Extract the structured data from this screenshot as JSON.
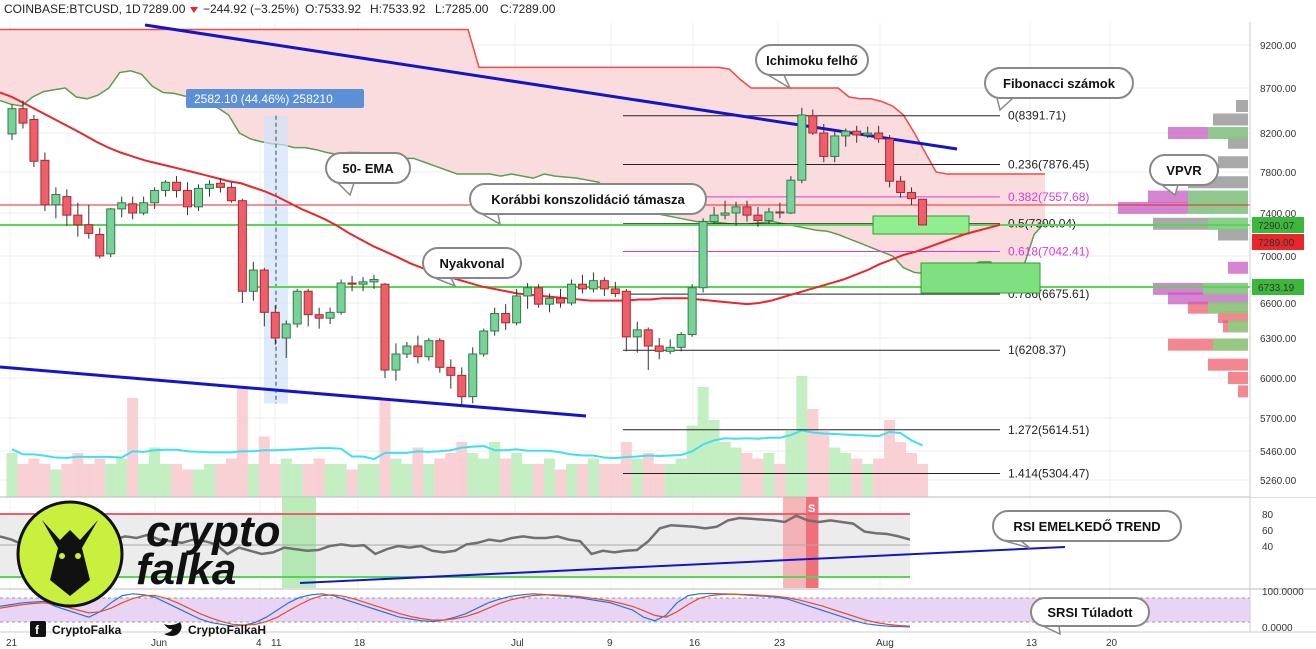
{
  "header": {
    "symbol": "COINBASE:BTCUSD, 1D",
    "last": "7289.00",
    "change": "−244.92 (−3.25%)",
    "o": "O:7533.92",
    "h": "H:7533.92",
    "l": "L:7285.00",
    "c": "C:7289.00"
  },
  "colors": {
    "up": "#79d19a",
    "up_border": "#2e7d47",
    "down": "#ef5f6a",
    "down_border": "#a52a33",
    "ema": "#e8262c",
    "cloud_fill": "#fbd8da",
    "cloud_top": "#ee4b4b",
    "cloud_bottom": "#5c9c4c",
    "trend": "#1515c8",
    "support": "#55d655",
    "rsi_line": "#707070",
    "srsi_k": "#2a73d6",
    "srsi_d": "#e34d2a",
    "callout_border": "#888888"
  },
  "chart_data": {
    "type": "candlestick",
    "title": "COINBASE:BTCUSD, 1D",
    "price_axis": [
      9200,
      8700,
      8200,
      7800,
      7400,
      7000,
      6600,
      6300,
      6000,
      5700,
      5460,
      5260
    ],
    "price_axis_labels": [
      "9200.00",
      "8700.00",
      "8200.00",
      "7800.00",
      "7400.00",
      "7000.00",
      "6600.00",
      "6300.00",
      "6000.00",
      "5700.00",
      "5460.00",
      "5260.00"
    ],
    "time_axis": [
      "21",
      "Jun",
      "4",
      "11",
      "18",
      "Jul",
      "9",
      "16",
      "23",
      "Aug",
      "13",
      "20"
    ],
    "price_labels": [
      {
        "value": "7290.07",
        "color": "#3bb83b"
      },
      {
        "value": "7289.00",
        "color": "#e8262c"
      },
      {
        "value": "6733.19",
        "color": "#3bb83b"
      }
    ],
    "candles": [
      {
        "o": 8190,
        "h": 8520,
        "l": 8130,
        "c": 8470
      },
      {
        "o": 8470,
        "h": 8560,
        "l": 8250,
        "c": 8310
      },
      {
        "o": 8350,
        "h": 8400,
        "l": 7850,
        "c": 7910
      },
      {
        "o": 7920,
        "h": 8000,
        "l": 7420,
        "c": 7480
      },
      {
        "o": 7480,
        "h": 7650,
        "l": 7350,
        "c": 7580
      },
      {
        "o": 7560,
        "h": 7630,
        "l": 7280,
        "c": 7380
      },
      {
        "o": 7380,
        "h": 7500,
        "l": 7180,
        "c": 7290
      },
      {
        "o": 7290,
        "h": 7480,
        "l": 7160,
        "c": 7210
      },
      {
        "o": 7200,
        "h": 7260,
        "l": 6980,
        "c": 7000
      },
      {
        "o": 7020,
        "h": 7450,
        "l": 6990,
        "c": 7440
      },
      {
        "o": 7440,
        "h": 7560,
        "l": 7360,
        "c": 7500
      },
      {
        "o": 7490,
        "h": 7560,
        "l": 7340,
        "c": 7400
      },
      {
        "o": 7400,
        "h": 7560,
        "l": 7380,
        "c": 7500
      },
      {
        "o": 7500,
        "h": 7650,
        "l": 7440,
        "c": 7620
      },
      {
        "o": 7620,
        "h": 7720,
        "l": 7560,
        "c": 7700
      },
      {
        "o": 7700,
        "h": 7760,
        "l": 7550,
        "c": 7620
      },
      {
        "o": 7620,
        "h": 7700,
        "l": 7380,
        "c": 7460
      },
      {
        "o": 7460,
        "h": 7680,
        "l": 7420,
        "c": 7640
      },
      {
        "o": 7640,
        "h": 7720,
        "l": 7560,
        "c": 7680
      },
      {
        "o": 7690,
        "h": 7740,
        "l": 7600,
        "c": 7650
      },
      {
        "o": 7650,
        "h": 7700,
        "l": 7500,
        "c": 7520
      },
      {
        "o": 7520,
        "h": 7540,
        "l": 6600,
        "c": 6700
      },
      {
        "o": 6700,
        "h": 6950,
        "l": 6620,
        "c": 6880
      },
      {
        "o": 6880,
        "h": 6900,
        "l": 6400,
        "c": 6520
      },
      {
        "o": 6520,
        "h": 6580,
        "l": 6250,
        "c": 6300
      },
      {
        "o": 6300,
        "h": 6450,
        "l": 6150,
        "c": 6420
      },
      {
        "o": 6420,
        "h": 6720,
        "l": 6390,
        "c": 6700
      },
      {
        "o": 6700,
        "h": 6720,
        "l": 6400,
        "c": 6500
      },
      {
        "o": 6500,
        "h": 6560,
        "l": 6380,
        "c": 6470
      },
      {
        "o": 6470,
        "h": 6560,
        "l": 6420,
        "c": 6520
      },
      {
        "o": 6520,
        "h": 6800,
        "l": 6500,
        "c": 6770
      },
      {
        "o": 6770,
        "h": 6830,
        "l": 6700,
        "c": 6760
      },
      {
        "o": 6760,
        "h": 6820,
        "l": 6700,
        "c": 6780
      },
      {
        "o": 6780,
        "h": 6840,
        "l": 6720,
        "c": 6800
      },
      {
        "o": 6760,
        "h": 6770,
        "l": 6000,
        "c": 6060
      },
      {
        "o": 6060,
        "h": 6260,
        "l": 5980,
        "c": 6180
      },
      {
        "o": 6180,
        "h": 6270,
        "l": 6150,
        "c": 6240
      },
      {
        "o": 6240,
        "h": 6320,
        "l": 6110,
        "c": 6160
      },
      {
        "o": 6160,
        "h": 6300,
        "l": 6130,
        "c": 6280
      },
      {
        "o": 6280,
        "h": 6300,
        "l": 6040,
        "c": 6080
      },
      {
        "o": 6080,
        "h": 6140,
        "l": 5920,
        "c": 6020
      },
      {
        "o": 6020,
        "h": 6080,
        "l": 5780,
        "c": 5860
      },
      {
        "o": 5860,
        "h": 6230,
        "l": 5810,
        "c": 6180
      },
      {
        "o": 6180,
        "h": 6380,
        "l": 6160,
        "c": 6360
      },
      {
        "o": 6360,
        "h": 6560,
        "l": 6320,
        "c": 6510
      },
      {
        "o": 6510,
        "h": 6590,
        "l": 6370,
        "c": 6430
      },
      {
        "o": 6430,
        "h": 6720,
        "l": 6410,
        "c": 6660
      },
      {
        "o": 6660,
        "h": 6770,
        "l": 6550,
        "c": 6730
      },
      {
        "o": 6730,
        "h": 6760,
        "l": 6560,
        "c": 6590
      },
      {
        "o": 6590,
        "h": 6680,
        "l": 6520,
        "c": 6640
      },
      {
        "o": 6640,
        "h": 6720,
        "l": 6560,
        "c": 6600
      },
      {
        "o": 6600,
        "h": 6800,
        "l": 6580,
        "c": 6760
      },
      {
        "o": 6760,
        "h": 6840,
        "l": 6680,
        "c": 6720
      },
      {
        "o": 6720,
        "h": 6860,
        "l": 6690,
        "c": 6790
      },
      {
        "o": 6790,
        "h": 6820,
        "l": 6660,
        "c": 6720
      },
      {
        "o": 6720,
        "h": 6780,
        "l": 6650,
        "c": 6680
      },
      {
        "o": 6700,
        "h": 6720,
        "l": 6200,
        "c": 6310
      },
      {
        "o": 6310,
        "h": 6440,
        "l": 6190,
        "c": 6370
      },
      {
        "o": 6370,
        "h": 6390,
        "l": 6060,
        "c": 6240
      },
      {
        "o": 6240,
        "h": 6300,
        "l": 6140,
        "c": 6200
      },
      {
        "o": 6200,
        "h": 6290,
        "l": 6180,
        "c": 6230
      },
      {
        "o": 6230,
        "h": 6350,
        "l": 6200,
        "c": 6330
      },
      {
        "o": 6330,
        "h": 6760,
        "l": 6310,
        "c": 6730
      },
      {
        "o": 6730,
        "h": 7350,
        "l": 6690,
        "c": 7320
      },
      {
        "o": 7320,
        "h": 7460,
        "l": 7300,
        "c": 7380
      },
      {
        "o": 7380,
        "h": 7520,
        "l": 7340,
        "c": 7400
      },
      {
        "o": 7400,
        "h": 7510,
        "l": 7280,
        "c": 7460
      },
      {
        "o": 7460,
        "h": 7520,
        "l": 7320,
        "c": 7380
      },
      {
        "o": 7380,
        "h": 7460,
        "l": 7270,
        "c": 7330
      },
      {
        "o": 7330,
        "h": 7450,
        "l": 7300,
        "c": 7410
      },
      {
        "o": 7410,
        "h": 7500,
        "l": 7350,
        "c": 7400
      },
      {
        "o": 7400,
        "h": 7760,
        "l": 7390,
        "c": 7720
      },
      {
        "o": 7720,
        "h": 8480,
        "l": 7690,
        "c": 8400
      },
      {
        "o": 8390,
        "h": 8460,
        "l": 8180,
        "c": 8200
      },
      {
        "o": 8200,
        "h": 8300,
        "l": 7900,
        "c": 7960
      },
      {
        "o": 7960,
        "h": 8220,
        "l": 7900,
        "c": 8170
      },
      {
        "o": 8170,
        "h": 8250,
        "l": 8060,
        "c": 8220
      },
      {
        "o": 8220,
        "h": 8280,
        "l": 8100,
        "c": 8180
      },
      {
        "o": 8180,
        "h": 8270,
        "l": 8150,
        "c": 8200
      },
      {
        "o": 8200,
        "h": 8280,
        "l": 8100,
        "c": 8140
      },
      {
        "o": 8140,
        "h": 8180,
        "l": 7650,
        "c": 7710
      },
      {
        "o": 7710,
        "h": 7760,
        "l": 7550,
        "c": 7600
      },
      {
        "o": 7600,
        "h": 7650,
        "l": 7480,
        "c": 7540
      },
      {
        "o": 7534,
        "h": 7534,
        "l": 7285,
        "c": 7289
      }
    ],
    "ema50": [
      8650,
      8600,
      8530,
      8460,
      8390,
      8320,
      8250,
      8180,
      8110,
      8050,
      8000,
      7960,
      7920,
      7890,
      7860,
      7830,
      7800,
      7770,
      7740,
      7710,
      7690,
      7650,
      7610,
      7560,
      7500,
      7440,
      7390,
      7340,
      7280,
      7210,
      7150,
      7090,
      7040,
      6990,
      6940,
      6900,
      6860,
      6830,
      6800,
      6770,
      6740,
      6720,
      6700,
      6680,
      6670,
      6660,
      6650,
      6640,
      6630,
      6620,
      6620,
      6620,
      6620,
      6630,
      6630,
      6640,
      6640,
      6640,
      6630,
      6620,
      6610,
      6600,
      6590,
      6600,
      6620,
      6650,
      6680,
      6710,
      6740,
      6770,
      6800,
      6840,
      6880,
      6930,
      6970,
      7010,
      7040,
      7080,
      7120,
      7160,
      7200,
      7230,
      7260,
      7290
    ],
    "cloud": {
      "span_top": [
        9380,
        9380,
        9380,
        9380,
        9380,
        9380,
        9380,
        9380,
        9380,
        9380,
        9380,
        9380,
        9380,
        9380,
        9380,
        9380,
        9380,
        9380,
        9380,
        9380,
        9380,
        9380,
        9380,
        9380,
        9380,
        9380,
        9380,
        9380,
        9380,
        9380,
        9380,
        9380,
        9380,
        9380,
        9380,
        9380,
        9380,
        9380,
        9380,
        9380,
        9380,
        9380,
        9380,
        9380,
        8940,
        8940,
        8940,
        8940,
        8940,
        8940,
        8940,
        8940,
        8940,
        8940,
        8940,
        8940,
        8940,
        8940,
        8940,
        8940,
        8940,
        8940,
        8940,
        8940,
        8940,
        8940,
        8940,
        8920,
        8800,
        8700,
        8700,
        8700,
        8700,
        8700,
        8700,
        8700,
        8700,
        8700,
        8600,
        8580,
        8580,
        8550,
        8500,
        8400,
        8200,
        8000,
        7800,
        7780,
        7780,
        7780,
        7780,
        7780,
        7780,
        7780,
        7780,
        7780,
        7780
      ],
      "span_bottom": [
        8560,
        8520,
        8500,
        8600,
        8660,
        8680,
        8700,
        8600,
        8580,
        8620,
        8700,
        8880,
        8900,
        8860,
        8720,
        8650,
        8640,
        8610,
        8600,
        8550,
        8480,
        8400,
        8200,
        8140,
        8110,
        8090,
        8080,
        8050,
        8050,
        8030,
        8000,
        7980,
        8000,
        8000,
        7960,
        7950,
        7950,
        7940,
        7940,
        7900,
        7860,
        7820,
        7780,
        7780,
        7780,
        7780,
        7760,
        7780,
        7760,
        7740,
        7780,
        7760,
        7750,
        7740,
        7720,
        7700,
        7600,
        7500,
        7460,
        7420,
        7400,
        7380,
        7360,
        7340,
        7320,
        7320,
        7310,
        7300,
        7290,
        7300,
        7310,
        7320,
        7300,
        7280,
        7260,
        7240,
        7230,
        7200,
        7160,
        7120,
        7080,
        7040,
        7000,
        6900,
        6860,
        6850,
        6860,
        6880,
        6900,
        6920,
        6950,
        6950,
        6870,
        6820,
        6900,
        7200,
        7310
      ]
    },
    "fibonacci": [
      {
        "label": "0(8391.71)",
        "value": 8391.71,
        "color": "#222222"
      },
      {
        "label": "0.236(7876.45)",
        "value": 7876.45,
        "color": "#222222"
      },
      {
        "label": "0.382(7557.68)",
        "value": 7557.68,
        "color": "#d83ad8"
      },
      {
        "label": "0.5(7300.04)",
        "value": 7300.04,
        "color": "#222222"
      },
      {
        "label": "0.618(7042.41)",
        "value": 7042.41,
        "color": "#d83ad8"
      },
      {
        "label": "0.786(6675.61)",
        "value": 6675.61,
        "color": "#222222"
      },
      {
        "label": "1(6208.37)",
        "value": 6208.37,
        "color": "#222222"
      },
      {
        "label": "1.272(5614.51)",
        "value": 5614.51,
        "color": "#222222"
      },
      {
        "label": "1.414(5304.47)",
        "value": 5304.47,
        "color": "#222222"
      }
    ],
    "measure_label": "2582.10 (44.46%) 258210",
    "volume": [
      0.4,
      0.3,
      0.35,
      0.3,
      0.25,
      0.3,
      0.4,
      0.3,
      0.35,
      0.3,
      0.35,
      0.9,
      0.3,
      0.45,
      0.3,
      0.3,
      0.25,
      0.25,
      0.3,
      0.3,
      0.35,
      1.0,
      0.3,
      0.55,
      0.3,
      0.35,
      0.3,
      0.3,
      0.35,
      0.3,
      0.3,
      0.25,
      0.3,
      0.3,
      0.9,
      0.35,
      0.3,
      0.45,
      0.3,
      0.35,
      0.4,
      0.5,
      0.4,
      0.35,
      0.5,
      0.35,
      0.4,
      0.3,
      0.3,
      0.35,
      0.25,
      0.3,
      0.3,
      0.35,
      0.3,
      0.3,
      0.5,
      0.35,
      0.4,
      0.3,
      0.3,
      0.35,
      0.65,
      1.0,
      0.7,
      0.5,
      0.45,
      0.4,
      0.35,
      0.4,
      0.3,
      0.6,
      1.1,
      0.8,
      0.6,
      0.45,
      0.4,
      0.35,
      0.3,
      0.35,
      0.7,
      0.5,
      0.4,
      0.3
    ],
    "rsi": {
      "axis": [
        80,
        60,
        40
      ],
      "values": [
        52,
        48,
        42,
        40,
        45,
        44,
        43,
        44,
        52,
        50,
        48,
        52,
        50,
        54,
        48,
        46,
        44,
        48,
        46,
        42,
        30,
        38,
        34,
        30,
        32,
        38,
        36,
        34,
        35,
        40,
        42,
        40,
        41,
        30,
        36,
        40,
        38,
        40,
        34,
        32,
        34,
        42,
        44,
        48,
        46,
        50,
        52,
        50,
        50,
        52,
        48,
        46,
        30,
        34,
        32,
        34,
        35,
        46,
        62,
        66,
        65,
        64,
        62,
        64,
        72,
        75,
        74,
        73,
        72,
        70,
        78,
        72,
        70,
        72,
        70,
        68,
        58,
        56,
        55,
        52,
        48
      ]
    },
    "srsi": {
      "axis_labels": [
        "100.0000",
        "0.0000"
      ],
      "k": [
        60,
        65,
        70,
        72,
        74,
        60,
        50,
        40,
        30,
        45,
        70,
        90,
        95,
        92,
        85,
        70,
        55,
        40,
        25,
        15,
        10,
        5,
        8,
        15,
        30,
        50,
        70,
        85,
        92,
        95,
        90,
        80,
        70,
        60,
        50,
        40,
        30,
        25,
        20,
        18,
        22,
        30,
        40,
        55,
        70,
        80,
        88,
        92,
        95,
        93,
        90,
        88,
        85,
        80,
        75,
        70,
        60,
        50,
        30,
        20,
        35,
        70,
        90,
        95,
        96,
        95,
        94,
        92,
        90,
        88,
        85,
        80,
        70,
        60,
        50,
        40,
        30,
        20,
        12,
        8,
        5,
        4,
        3
      ],
      "d": [
        55,
        60,
        65,
        68,
        70,
        65,
        58,
        50,
        42,
        45,
        55,
        70,
        82,
        90,
        90,
        82,
        70,
        55,
        40,
        28,
        18,
        10,
        8,
        10,
        18,
        30,
        48,
        65,
        80,
        90,
        92,
        88,
        80,
        70,
        60,
        50,
        40,
        32,
        26,
        22,
        22,
        26,
        32,
        42,
        55,
        68,
        78,
        85,
        90,
        92,
        92,
        90,
        88,
        84,
        80,
        75,
        68,
        60,
        48,
        35,
        30,
        45,
        65,
        82,
        90,
        93,
        94,
        93,
        92,
        90,
        88,
        84,
        78,
        70,
        62,
        52,
        42,
        32,
        22,
        15,
        10,
        7,
        5
      ]
    },
    "vpvr_label": "VPVR"
  },
  "callouts": {
    "ichimoku": "Ichimoku felhő",
    "fibonacci": "Fibonacci számok",
    "ema": "50- EMA",
    "support": "Korábbi konszolidáció támasza",
    "neckline": "Nyakvonal",
    "vpvr": "VPVR",
    "rsi_trend": "RSI EMELKEDŐ TREND",
    "srsi": "SRSI Túladott"
  },
  "branding": {
    "logo_line1": "crypto",
    "logo_line2": "falka",
    "facebook": "CryptoFalka",
    "twitter": "CryptoFalkaH",
    "rsi_marker": "S"
  }
}
